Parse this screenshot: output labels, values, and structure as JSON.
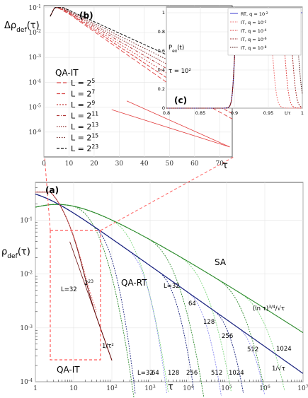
{
  "chart_data": [
    {
      "type": "line",
      "panel_label": "(a)",
      "ylabel": "ρ_def(τ)",
      "xlabel": "τ",
      "x_scale": "log",
      "y_scale": "log",
      "xlim": [
        1,
        10000000
      ],
      "ylim": [
        0.0001,
        0.5
      ],
      "x_ticks": [
        "1",
        "10",
        "10²",
        "10³",
        "10⁴",
        "10⁵",
        "10⁶",
        "10⁷"
      ],
      "y_ticks": [
        "10⁻⁴",
        "10⁻³",
        "10⁻²",
        "10⁻¹"
      ],
      "colors": {
        "sa": "#2e8b2e",
        "sa_light": "#7cd67c",
        "rt": "#1a237e",
        "rt_light": "#8a8af0",
        "it": "#6b0f0f",
        "it_light": "#e86a6a",
        "inset_box": "#ff5a5a"
      },
      "annotations": {
        "sa": "SA",
        "rt": "QA-RT",
        "it": "QA-IT",
        "sa_fit": "(ln τ)^{3/4}/√τ",
        "rt_fit": "1/√τ",
        "it_fit": "1/τ²",
        "it_l32": "L=32",
        "it_l223": "2^{23}",
        "sa_sizes": [
          "L=32",
          "64",
          "128",
          "256",
          "512",
          "1024"
        ],
        "rt_sizes": [
          "L=32",
          "64",
          "128",
          "256",
          "512",
          "1024"
        ]
      },
      "series": [
        {
          "name": "SA",
          "L": [
            32,
            64,
            128,
            256,
            512,
            1024
          ],
          "x_cut": [
            300,
            3000,
            30000,
            200000,
            2000000,
            8000000
          ]
        },
        {
          "name": "QA-RT",
          "L": [
            32,
            64,
            128,
            256,
            512,
            1024
          ],
          "x_cut": [
            500,
            4000,
            25000,
            150000,
            700000,
            3000000
          ]
        },
        {
          "name": "QA-IT",
          "L": [
            32,
            8388608
          ]
        }
      ]
    },
    {
      "type": "line",
      "panel_label": "(b)",
      "ylabel": "Δρ_def(τ)",
      "xlabel": "τ",
      "y_scale": "log",
      "xlim": [
        0,
        75
      ],
      "ylim": [
        1e-07,
        0.12
      ],
      "x_ticks": [
        "0",
        "10",
        "20",
        "30",
        "40",
        "50",
        "60",
        "70"
      ],
      "y_ticks": [
        "10⁻⁶",
        "10⁻⁵",
        "10⁻⁴",
        "10⁻³",
        "10⁻²",
        "10⁻¹"
      ],
      "legend_title": "QA-IT",
      "legend": [
        {
          "label": "L = 2^5",
          "L": 32
        },
        {
          "label": "L = 2^7",
          "L": 128
        },
        {
          "label": "L = 2^9",
          "L": 512
        },
        {
          "label": "L = 2^11",
          "L": 2048
        },
        {
          "label": "L = 2^13",
          "L": 8192
        },
        {
          "label": "L = 2^15",
          "L": 32768
        },
        {
          "label": "L = 2^23",
          "L": 8388608
        }
      ]
    },
    {
      "type": "line",
      "panel_label": "(c)",
      "ylabel": "P_ex(t)",
      "xlabel": "t/τ",
      "xlim": [
        0.8,
        1.0
      ],
      "ylim": [
        0,
        1
      ],
      "x_ticks": [
        "0.8",
        "0.85",
        "0.9",
        "0.95",
        "1"
      ],
      "y_ticks": [
        "0",
        "0.2",
        "0.4",
        "0.6",
        "0.8",
        "1"
      ],
      "note": "τ = 10²",
      "legend": [
        {
          "label": "RT, q = 10^{-2}"
        },
        {
          "label": "IT, q = 10^{-2}"
        },
        {
          "label": "IT, q = 10^{-4}"
        },
        {
          "label": "IT, q = 10^{-6}"
        },
        {
          "label": "IT, q = 10^{-8}"
        }
      ]
    }
  ]
}
